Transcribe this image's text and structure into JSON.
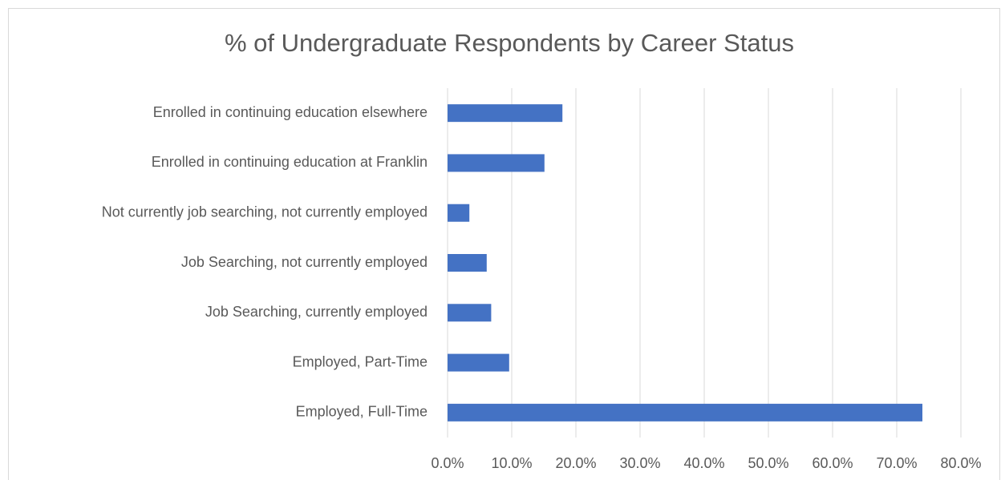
{
  "chart_data": {
    "type": "bar",
    "orientation": "horizontal",
    "title": "% of Undergraduate Respondents by Career Status",
    "categories": [
      "Enrolled in continuing education elsewhere",
      "Enrolled in continuing education at Franklin",
      "Not currently job searching, not currently employed",
      "Job Searching, not currently employed",
      "Job Searching, currently employed",
      "Employed, Part-Time",
      "Employed, Full-Time"
    ],
    "values": [
      17.9,
      15.1,
      3.4,
      6.1,
      6.8,
      9.6,
      74.0
    ],
    "color": "#4472c4",
    "xlim": [
      0,
      80
    ],
    "xticks": [
      {
        "value": 0,
        "label": "0.0%"
      },
      {
        "value": 10,
        "label": "10.0%"
      },
      {
        "value": 20,
        "label": "20.0%"
      },
      {
        "value": 30,
        "label": "30.0%"
      },
      {
        "value": 40,
        "label": "40.0%"
      },
      {
        "value": 50,
        "label": "50.0%"
      },
      {
        "value": 60,
        "label": "60.0%"
      },
      {
        "value": 70,
        "label": "70.0%"
      },
      {
        "value": 80,
        "label": "80.0%"
      }
    ],
    "grid": true
  }
}
